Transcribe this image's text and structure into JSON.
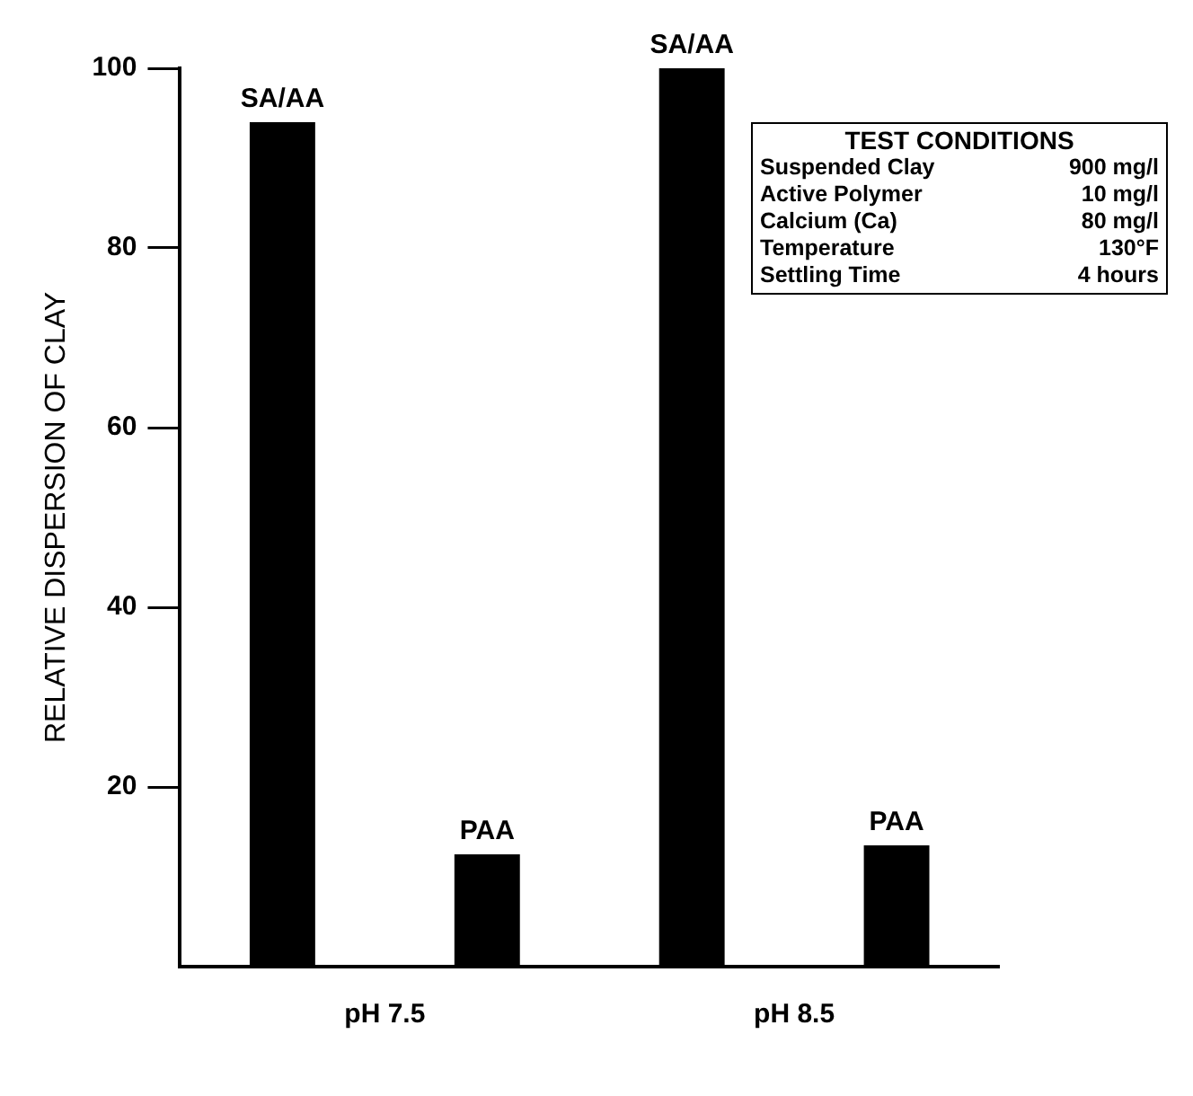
{
  "chart_data": {
    "type": "bar",
    "ylabel": "RELATIVE DISPERSION OF CLAY",
    "categories": [
      "pH 7.5",
      "pH 8.5"
    ],
    "series": [
      {
        "name": "SA/AA",
        "color": "#000000",
        "values": [
          94,
          100
        ]
      },
      {
        "name": "PAA",
        "color": "#000000",
        "values": [
          12.5,
          13.5
        ]
      }
    ],
    "ylim": [
      0,
      100
    ],
    "yticks": [
      20,
      40,
      60,
      80,
      100
    ],
    "grid": false,
    "legend": false,
    "annotations": [
      "TEST CONDITIONS",
      "Suspended Clay\t900 mg/l",
      "Active Polymer\t10 mg/l",
      "Calcium (Ca)\t80 mg/l",
      "Temperature\t130°F",
      "Settling Time\t4 hours"
    ]
  }
}
